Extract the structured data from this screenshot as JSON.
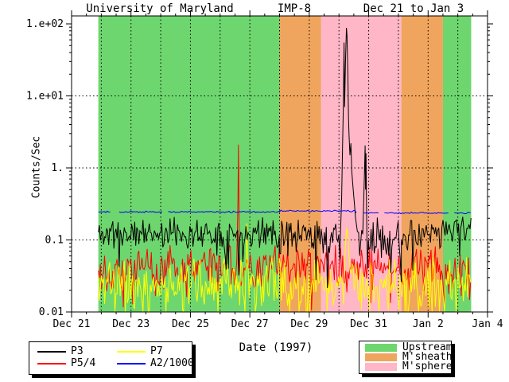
{
  "title": {
    "left": "University of Maryland",
    "center": "IMP-8",
    "right": "Dec 21 to Jan 3"
  },
  "xlabel": "Date (1997)",
  "ylabel": "Counts/Sec",
  "colors": {
    "background": "#FFFFFF",
    "frame": "#000000",
    "upstream_green": "#6ED66E",
    "msheath_orange": "#F0A55E",
    "msphere_pink": "#FFB6C6",
    "p3_black": "#000000",
    "p54_red": "#FF0000",
    "p7_yellow": "#FFFF00",
    "a2_blue": "#0000FF"
  },
  "legend_left": {
    "entries": [
      {
        "label": "P3",
        "color": "#000000"
      },
      {
        "label": "P7",
        "color": "#FFFF00"
      },
      {
        "label": "P5/4",
        "color": "#FF0000"
      },
      {
        "label": "A2/1000",
        "color": "#0000FF"
      }
    ]
  },
  "legend_right": {
    "entries": [
      {
        "label": "Upstream",
        "color": "#6ED66E"
      },
      {
        "label": "M'sheath",
        "color": "#F0A55E"
      },
      {
        "label": "M'sphere",
        "color": "#FFB6C6"
      }
    ]
  },
  "chart_data": {
    "type": "line",
    "title": "University of Maryland IMP-8 Dec 21 to Jan 3",
    "xlabel": "Date (1997)",
    "ylabel": "Counts/Sec",
    "x_axis": {
      "unit": "days since Dec 21 1997",
      "days_total": 14,
      "major_tick_days": [
        0,
        2,
        4,
        6,
        8,
        10,
        12,
        14
      ],
      "major_tick_labels": [
        "Dec 21",
        "Dec 23",
        "Dec 25",
        "Dec 27",
        "Dec 29",
        "Dec 31",
        "Jan 2",
        "Jan 4"
      ],
      "minor_tick_step_days": 0.5,
      "grid_days": [
        1,
        2,
        3,
        4,
        5,
        6,
        7,
        8,
        9,
        10,
        11,
        12,
        13
      ]
    },
    "y_axis": {
      "scale": "log",
      "min": 0.01,
      "max": 129,
      "tick_values": [
        100,
        10,
        1,
        0.1,
        0.01
      ],
      "tick_labels": [
        "1.e+02",
        "1.e+01",
        "1.",
        "0.1",
        "0.01"
      ],
      "grid_values": [
        10,
        1,
        0.1
      ]
    },
    "regions": [
      {
        "label": "Upstream",
        "color": "#6ED66E",
        "from_day": 0.9,
        "to_day": 7.0
      },
      {
        "label": "M'sheath",
        "color": "#F0A55E",
        "from_day": 7.0,
        "to_day": 8.4
      },
      {
        "label": "M'sphere",
        "color": "#FFB6C6",
        "from_day": 8.4,
        "to_day": 11.1
      },
      {
        "label": "M'sheath",
        "color": "#F0A55E",
        "from_day": 11.1,
        "to_day": 12.5
      },
      {
        "label": "Upstream",
        "color": "#6ED66E",
        "from_day": 12.5,
        "to_day": 13.45
      }
    ],
    "series": [
      {
        "name": "P5/4",
        "color": "#FF0000",
        "seed": 22,
        "step_days": 0.035,
        "segments": [
          {
            "from": 0.9,
            "to": 13.45,
            "level": 0.042,
            "noise_dec": 0.16,
            "dip_prob": 0.07,
            "dip_dec": 0.35
          }
        ],
        "spikes": [
          {
            "mask": [
              5.55,
              5.67
            ],
            "points": [
              [
                5.56,
                0.05
              ],
              [
                5.6,
                0.35
              ],
              [
                5.615,
                2.1
              ],
              [
                5.63,
                0.5
              ],
              [
                5.645,
                0.08
              ],
              [
                5.66,
                0.04
              ]
            ]
          }
        ]
      },
      {
        "name": "P7",
        "color": "#FFFF00",
        "seed": 33,
        "step_days": 0.035,
        "segments": [
          {
            "from": 0.9,
            "to": 13.45,
            "level": 0.024,
            "noise_dec": 0.19,
            "dip_prob": 0.12,
            "dip_dec": 0.45
          }
        ],
        "spikes": [
          {
            "mask": [
              5.85,
              5.97
            ],
            "points": [
              [
                5.86,
                0.03
              ],
              [
                5.9,
                0.17
              ],
              [
                5.93,
                0.05
              ],
              [
                5.96,
                0.028
              ]
            ]
          },
          {
            "mask": [
              9.17,
              9.39
            ],
            "points": [
              [
                9.18,
                0.035
              ],
              [
                9.22,
                0.09
              ],
              [
                9.26,
                0.145
              ],
              [
                9.3,
                0.11
              ],
              [
                9.34,
                0.06
              ],
              [
                9.38,
                0.035
              ]
            ]
          }
        ]
      },
      {
        "name": "P3",
        "color": "#000000",
        "seed": 11,
        "step_days": 0.035,
        "segments": [
          {
            "from": 0.9,
            "to": 7.0,
            "level": 0.125,
            "noise_dec": 0.11,
            "dip_prob": 0.05,
            "dip_dec": 0.35
          },
          {
            "from": 7.0,
            "to": 8.4,
            "level": 0.12,
            "noise_dec": 0.13,
            "dip_prob": 0.06,
            "dip_dec": 0.4
          },
          {
            "from": 8.4,
            "to": 11.1,
            "level": 0.1,
            "noise_dec": 0.15,
            "dip_prob": 0.07,
            "dip_dec": 0.5
          },
          {
            "from": 11.1,
            "to": 12.5,
            "level": 0.115,
            "noise_dec": 0.12,
            "dip_prob": 0.05,
            "dip_dec": 0.35
          },
          {
            "from": 12.5,
            "to": 13.45,
            "level": 0.15,
            "noise_dec": 0.11,
            "dip_prob": 0.04,
            "dip_dec": 0.3
          }
        ],
        "spikes": [
          {
            "mask": [
              9.05,
              9.63
            ],
            "points": [
              [
                9.05,
                0.12
              ],
              [
                9.09,
                0.4
              ],
              [
                9.12,
                2
              ],
              [
                9.15,
                8
              ],
              [
                9.17,
                55
              ],
              [
                9.19,
                7
              ],
              [
                9.22,
                30
              ],
              [
                9.25,
                88
              ],
              [
                9.27,
                70
              ],
              [
                9.3,
                20
              ],
              [
                9.32,
                5
              ],
              [
                9.34,
                2.8
              ],
              [
                9.37,
                1.5
              ],
              [
                9.4,
                2.2
              ],
              [
                9.43,
                0.9
              ],
              [
                9.47,
                0.55
              ],
              [
                9.51,
                0.35
              ],
              [
                9.56,
                0.2
              ],
              [
                9.62,
                0.13
              ]
            ]
          },
          {
            "mask": [
              9.79,
              10.0
            ],
            "points": [
              [
                9.8,
                0.12
              ],
              [
                9.84,
                0.45
              ],
              [
                9.86,
                0.9
              ],
              [
                9.88,
                2.05
              ],
              [
                9.895,
                0.5
              ],
              [
                9.91,
                1.6
              ],
              [
                9.925,
                0.35
              ],
              [
                9.94,
                0.12
              ],
              [
                9.96,
                0.04
              ],
              [
                9.99,
                0.1
              ]
            ]
          }
        ]
      },
      {
        "name": "A2/1000",
        "color": "#0000FF",
        "seed": 44,
        "step_days": 0.05,
        "segments": [
          {
            "from": 0.9,
            "to": 7.0,
            "level": 0.245,
            "noise_dec": 0.006,
            "dip_prob": 0,
            "dip_dec": 0
          },
          {
            "from": 7.0,
            "to": 9.58,
            "level": 0.252,
            "noise_dec": 0.006,
            "dip_prob": 0,
            "dip_dec": 0
          },
          {
            "from": 9.58,
            "to": 13.45,
            "level": 0.237,
            "noise_dec": 0.006,
            "dip_prob": 0,
            "dip_dec": 0
          }
        ],
        "gaps": [
          [
            1.35,
            1.6
          ],
          [
            3.05,
            3.2
          ],
          [
            9.58,
            9.8
          ],
          [
            10.35,
            10.5
          ],
          [
            12.7,
            12.85
          ]
        ],
        "spikes": []
      }
    ],
    "legend_series": [
      [
        "P3",
        "#000000"
      ],
      [
        "P5/4",
        "#FF0000"
      ],
      [
        "P7",
        "#FFFF00"
      ],
      [
        "A2/1000",
        "#0000FF"
      ]
    ],
    "legend_regions": [
      [
        "Upstream",
        "#6ED66E"
      ],
      [
        "M'sheath",
        "#F0A55E"
      ],
      [
        "M'sphere",
        "#FFB6C6"
      ]
    ],
    "legend_position": "bottom",
    "grid": "dashed"
  }
}
